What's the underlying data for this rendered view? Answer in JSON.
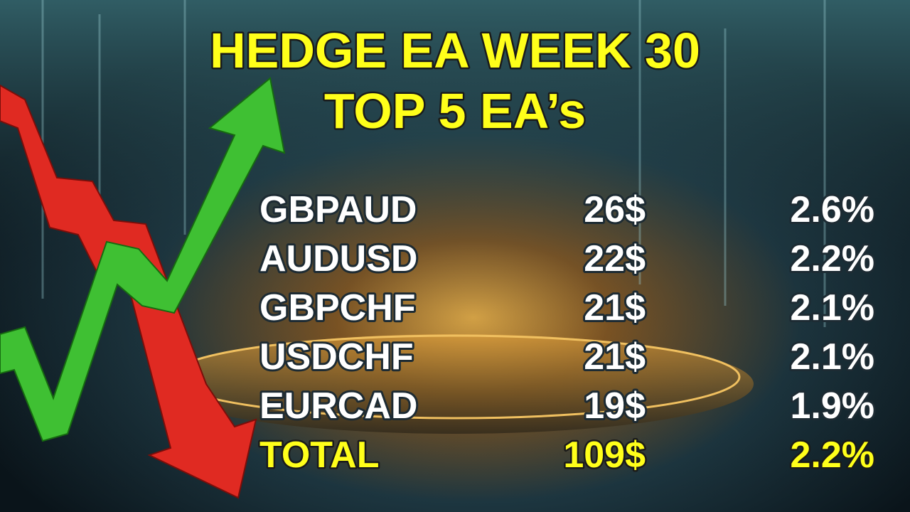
{
  "header": {
    "title_lines": [
      "HEDGE EA WEEK 30",
      "TOP 5 EA’s"
    ]
  },
  "table": {
    "rows": [
      [
        "GBPAUD",
        "26$",
        "2.6%"
      ],
      [
        "AUDUSD",
        "22$",
        "2.2%"
      ],
      [
        "GBPCHF",
        "21$",
        "2.1%"
      ],
      [
        "USDCHF",
        "21$",
        "2.1%"
      ],
      [
        "EURCAD",
        "19$",
        "1.9%"
      ]
    ],
    "total": [
      "TOTAL",
      "109$",
      "2.2%"
    ]
  }
}
